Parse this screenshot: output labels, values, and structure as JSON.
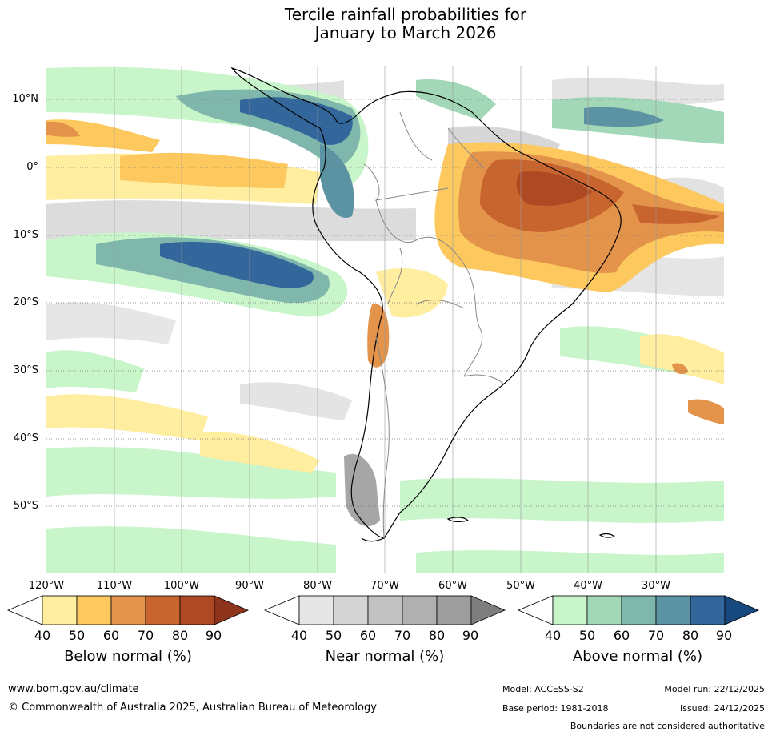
{
  "title_line1": "Tercile rainfall probabilities for",
  "title_line2": "January to March 2026",
  "map": {
    "lat_labels": [
      "10°N",
      "0°",
      "10°S",
      "20°S",
      "30°S",
      "40°S",
      "50°S"
    ],
    "lon_labels": [
      "120°W",
      "110°W",
      "100°W",
      "90°W",
      "80°W",
      "70°W",
      "60°W",
      "50°W",
      "40°W",
      "30°W"
    ]
  },
  "colorbars": [
    {
      "label": "Below normal (%)",
      "ticks": [
        "40",
        "50",
        "60",
        "70",
        "80",
        "90"
      ],
      "colors": [
        "#ffeda0",
        "#fdc85e",
        "#e3934a",
        "#c8652f",
        "#ad4a24",
        "#8e331c"
      ]
    },
    {
      "label": "Near normal (%)",
      "ticks": [
        "40",
        "50",
        "60",
        "70",
        "80",
        "90"
      ],
      "colors": [
        "#e6e6e6",
        "#d4d4d4",
        "#c2c2c2",
        "#b0b0b0",
        "#9e9e9e",
        "#7e7e7e"
      ]
    },
    {
      "label": "Above normal (%)",
      "ticks": [
        "40",
        "50",
        "60",
        "70",
        "80",
        "90"
      ],
      "colors": [
        "#c9f5cb",
        "#a2d8b7",
        "#7fb7ac",
        "#5b93a2",
        "#33679b",
        "#17497f"
      ]
    }
  ],
  "footer": {
    "url": "www.bom.gov.au/climate",
    "copyright": "© Commonwealth of Australia 2025, Australian Bureau of Meteorology",
    "model": "Model: ACCESS-S2",
    "base_period": "Base period: 1981-2018",
    "model_run": "Model run: 22/12/2025",
    "issued": "Issued: 24/12/2025",
    "boundaries": "Boundaries are not considered authoritative"
  }
}
